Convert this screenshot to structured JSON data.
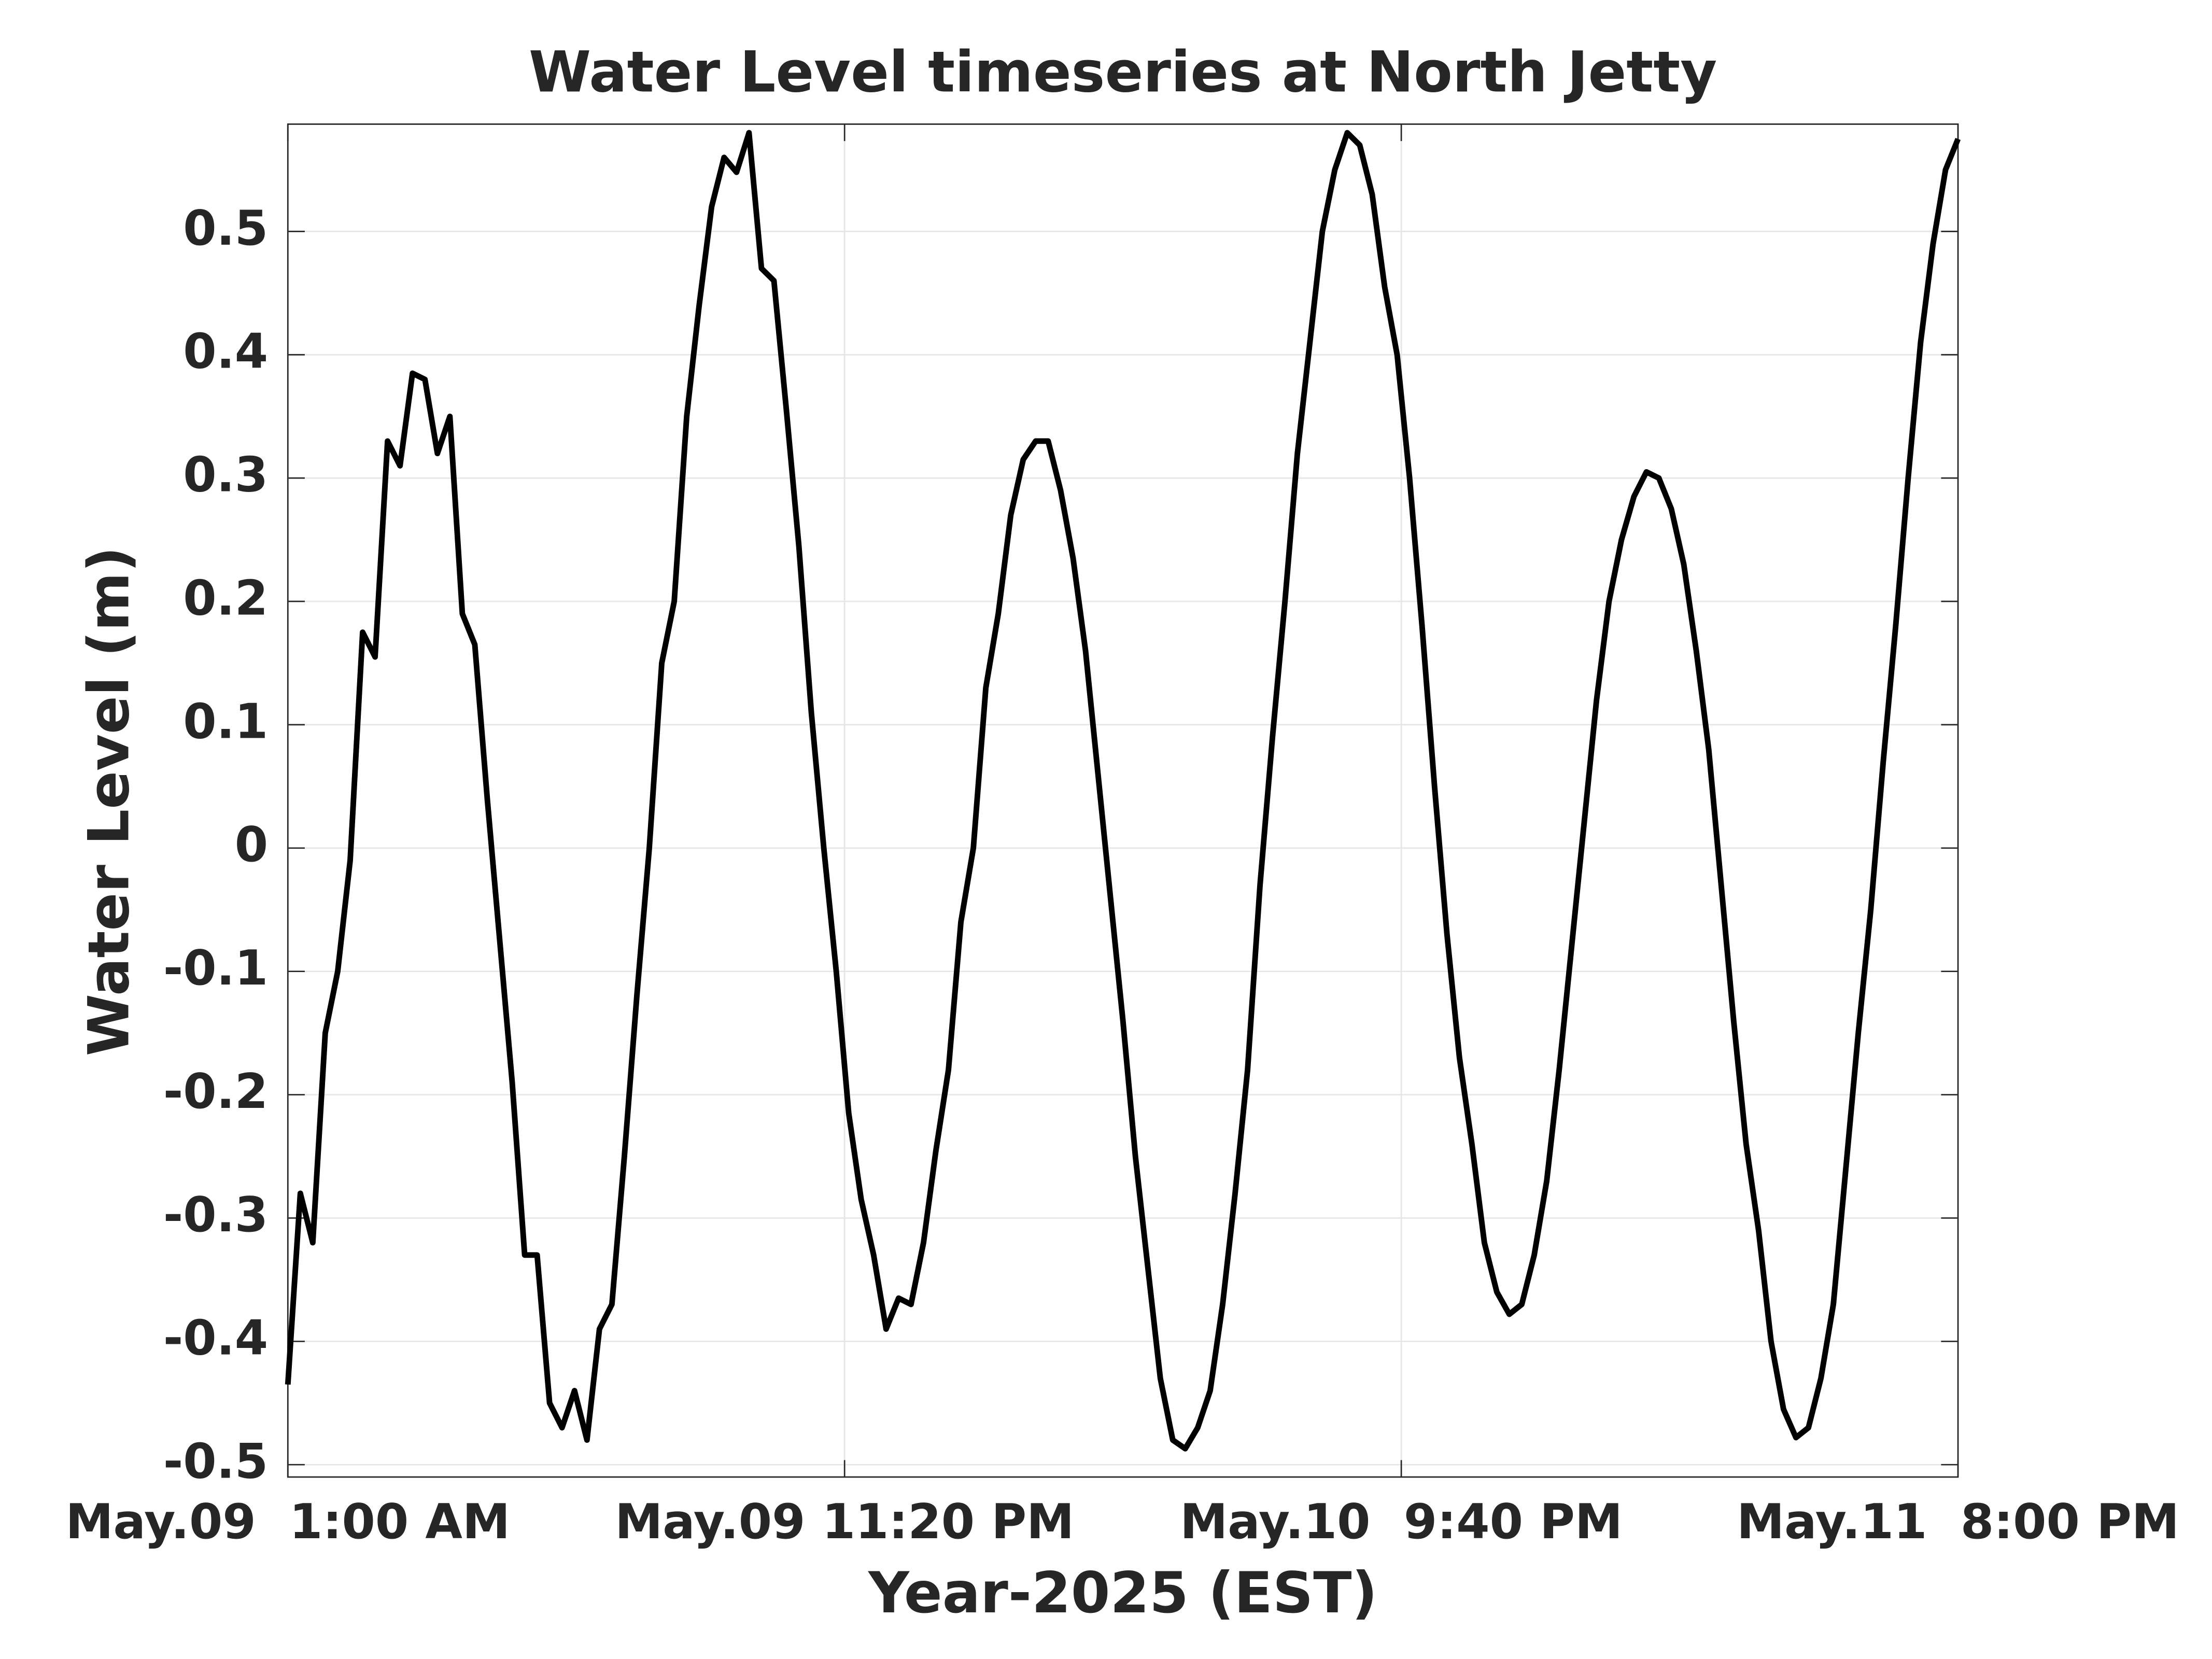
{
  "chart_data": {
    "type": "line",
    "title": "Water Level timeseries at North Jetty",
    "xlabel": "Year-2025 (EST)",
    "ylabel": "Water Level (m)",
    "x": [
      "2025-05-09T01:00",
      "2025-05-09T01:30",
      "2025-05-09T02:00",
      "2025-05-09T02:30",
      "2025-05-09T03:00",
      "2025-05-09T03:30",
      "2025-05-09T04:00",
      "2025-05-09T04:30",
      "2025-05-09T05:00",
      "2025-05-09T05:30",
      "2025-05-09T06:00",
      "2025-05-09T06:30",
      "2025-05-09T07:00",
      "2025-05-09T07:30",
      "2025-05-09T08:00",
      "2025-05-09T08:30",
      "2025-05-09T09:00",
      "2025-05-09T09:30",
      "2025-05-09T10:00",
      "2025-05-09T10:30",
      "2025-05-09T11:00",
      "2025-05-09T11:30",
      "2025-05-09T12:00",
      "2025-05-09T12:30",
      "2025-05-09T13:00",
      "2025-05-09T13:30",
      "2025-05-09T14:00",
      "2025-05-09T14:30",
      "2025-05-09T15:00",
      "2025-05-09T15:30",
      "2025-05-09T16:00",
      "2025-05-09T16:30",
      "2025-05-09T17:00",
      "2025-05-09T17:30",
      "2025-05-09T18:00",
      "2025-05-09T18:30",
      "2025-05-09T19:00",
      "2025-05-09T19:30",
      "2025-05-09T20:00",
      "2025-05-09T20:30",
      "2025-05-09T21:00",
      "2025-05-09T21:30",
      "2025-05-09T22:00",
      "2025-05-09T22:30",
      "2025-05-09T23:00",
      "2025-05-09T23:30",
      "2025-05-10T00:00",
      "2025-05-10T00:30",
      "2025-05-10T01:00",
      "2025-05-10T01:30",
      "2025-05-10T02:00",
      "2025-05-10T02:30",
      "2025-05-10T03:00",
      "2025-05-10T03:30",
      "2025-05-10T04:00",
      "2025-05-10T04:30",
      "2025-05-10T05:00",
      "2025-05-10T05:30",
      "2025-05-10T06:00",
      "2025-05-10T06:30",
      "2025-05-10T07:00",
      "2025-05-10T07:30",
      "2025-05-10T08:00",
      "2025-05-10T08:30",
      "2025-05-10T09:00",
      "2025-05-10T09:30",
      "2025-05-10T10:00",
      "2025-05-10T10:30",
      "2025-05-10T11:00",
      "2025-05-10T11:30",
      "2025-05-10T12:00",
      "2025-05-10T12:30",
      "2025-05-10T13:00",
      "2025-05-10T13:30",
      "2025-05-10T14:00",
      "2025-05-10T14:30",
      "2025-05-10T15:00",
      "2025-05-10T15:30",
      "2025-05-10T16:00",
      "2025-05-10T16:30",
      "2025-05-10T17:00",
      "2025-05-10T17:30",
      "2025-05-10T18:00",
      "2025-05-10T18:30",
      "2025-05-10T19:00",
      "2025-05-10T19:30",
      "2025-05-10T20:00",
      "2025-05-10T20:30",
      "2025-05-10T21:00",
      "2025-05-10T21:30",
      "2025-05-10T22:00",
      "2025-05-10T22:30",
      "2025-05-10T23:00",
      "2025-05-10T23:30",
      "2025-05-11T00:00",
      "2025-05-11T00:30",
      "2025-05-11T01:00",
      "2025-05-11T01:30",
      "2025-05-11T02:00",
      "2025-05-11T02:30",
      "2025-05-11T03:00",
      "2025-05-11T03:30",
      "2025-05-11T04:00",
      "2025-05-11T04:30",
      "2025-05-11T05:00",
      "2025-05-11T05:30",
      "2025-05-11T06:00",
      "2025-05-11T06:30",
      "2025-05-11T07:00",
      "2025-05-11T07:30",
      "2025-05-11T08:00",
      "2025-05-11T08:30",
      "2025-05-11T09:00",
      "2025-05-11T09:30",
      "2025-05-11T10:00",
      "2025-05-11T10:30",
      "2025-05-11T11:00",
      "2025-05-11T11:30",
      "2025-05-11T12:00",
      "2025-05-11T12:30",
      "2025-05-11T13:00",
      "2025-05-11T13:30",
      "2025-05-11T14:00",
      "2025-05-11T14:30",
      "2025-05-11T15:00",
      "2025-05-11T15:30",
      "2025-05-11T16:00",
      "2025-05-11T16:30",
      "2025-05-11T17:00",
      "2025-05-11T17:30",
      "2025-05-11T18:00",
      "2025-05-11T18:30",
      "2025-05-11T19:00",
      "2025-05-11T19:30",
      "2025-05-11T20:00"
    ],
    "series": [
      {
        "name": "Water Level",
        "color": "#000000",
        "values": [
          -0.435,
          -0.28,
          -0.32,
          -0.15,
          -0.1,
          -0.01,
          0.175,
          0.155,
          0.33,
          0.31,
          0.385,
          0.38,
          0.32,
          0.35,
          0.19,
          0.165,
          0.04,
          -0.075,
          -0.19,
          -0.33,
          -0.33,
          -0.45,
          -0.47,
          -0.44,
          -0.48,
          -0.39,
          -0.37,
          -0.25,
          -0.12,
          0.0,
          0.15,
          0.2,
          0.35,
          0.44,
          0.52,
          0.56,
          0.548,
          0.58,
          0.47,
          0.46,
          0.355,
          0.245,
          0.11,
          0.0,
          -0.1,
          -0.215,
          -0.285,
          -0.33,
          -0.39,
          -0.365,
          -0.37,
          -0.32,
          -0.245,
          -0.18,
          -0.06,
          0.0,
          0.13,
          0.19,
          0.27,
          0.315,
          0.33,
          0.33,
          0.29,
          0.235,
          0.16,
          0.06,
          -0.04,
          -0.14,
          -0.25,
          -0.34,
          -0.43,
          -0.48,
          -0.487,
          -0.47,
          -0.44,
          -0.37,
          -0.28,
          -0.18,
          -0.03,
          0.09,
          0.2,
          0.32,
          0.41,
          0.5,
          0.55,
          0.58,
          0.57,
          0.53,
          0.455,
          0.4,
          0.3,
          0.18,
          0.05,
          -0.07,
          -0.17,
          -0.24,
          -0.32,
          -0.36,
          -0.378,
          -0.37,
          -0.33,
          -0.27,
          -0.18,
          -0.08,
          0.02,
          0.12,
          0.2,
          0.25,
          0.285,
          0.305,
          0.3,
          0.275,
          0.23,
          0.16,
          0.08,
          -0.03,
          -0.14,
          -0.24,
          -0.31,
          -0.4,
          -0.455,
          -0.478,
          -0.47,
          -0.43,
          -0.37,
          -0.26,
          -0.15,
          -0.05,
          0.07,
          0.18,
          0.3,
          0.41,
          0.49,
          0.55,
          0.575
        ]
      }
    ],
    "xlim": [
      "2025-05-09T01:00",
      "2025-05-11T20:00"
    ],
    "xticks": [
      {
        "value": "2025-05-09T01:00",
        "label": "May.09  1:00 AM"
      },
      {
        "value": "2025-05-09T23:20",
        "label": "May.09 11:20 PM"
      },
      {
        "value": "2025-05-10T21:40",
        "label": "May.10  9:40 PM"
      },
      {
        "value": "2025-05-11T20:00",
        "label": "May.11  8:00 PM"
      }
    ],
    "ylim": [
      -0.51,
      0.587
    ],
    "yticks": [
      -0.5,
      -0.4,
      -0.3,
      -0.2,
      -0.1,
      0,
      0.1,
      0.2,
      0.3,
      0.4,
      0.5
    ],
    "grid": true
  }
}
